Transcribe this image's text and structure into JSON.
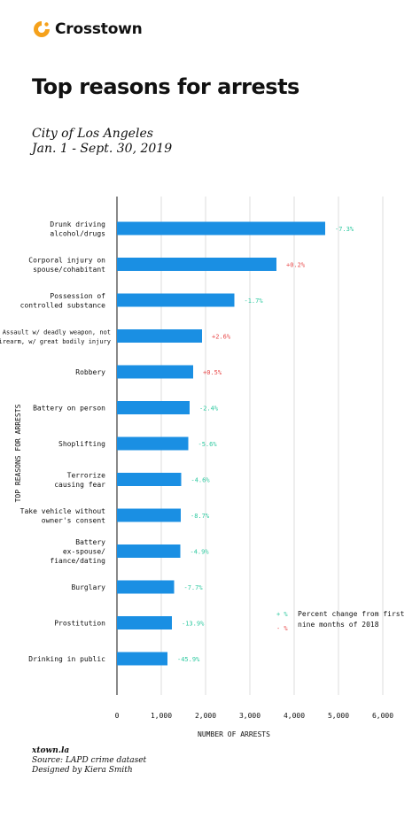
{
  "brand": {
    "name": "Crosstown",
    "color": "#f5a11b"
  },
  "header": {
    "title": "Top reasons for arrests",
    "subtitle_line1": "City of Los Angeles",
    "subtitle_line2": "Jan. 1 - Sept. 30, 2019"
  },
  "footer": {
    "site": "xtown.la",
    "source": "Source: LAPD crime dataset",
    "credit": "Designed by Kiera Smith"
  },
  "colors": {
    "bar": "#1a8fe3",
    "increase": "#e84a4a",
    "decrease": "#2ec9a0",
    "grid": "#dddddd",
    "axis": "#111111"
  },
  "chart_data": {
    "type": "bar",
    "orientation": "horizontal",
    "xlabel": "NUMBER OF ARRESTS",
    "ylabel": "TOP REASONS FOR ARRESTS",
    "xlim": [
      0,
      6000
    ],
    "xticks": [
      0,
      1000,
      2000,
      3000,
      4000,
      5000,
      6000
    ],
    "xtick_labels": [
      "0",
      "1,000",
      "2,000",
      "3,000",
      "4,000",
      "5,000",
      "6,000"
    ],
    "grid": true,
    "categories": [
      [
        "Drunk driving",
        "alcohol/drugs"
      ],
      [
        "Corporal injury on",
        "spouse/cohabitant"
      ],
      [
        "Possession of",
        "controlled substance"
      ],
      [
        "Assault w/ deadly weapon, not",
        "firearm, w/ great bodily injury"
      ],
      [
        "Robbery"
      ],
      [
        "Battery on person"
      ],
      [
        "Shoplifting"
      ],
      [
        "Terrorize",
        "causing fear"
      ],
      [
        "Take vehicle without",
        "owner's consent"
      ],
      [
        "Battery",
        "ex-spouse/",
        "fiance/dating"
      ],
      [
        "Burglary"
      ],
      [
        "Prostitution"
      ],
      [
        "Drinking in public"
      ]
    ],
    "values": [
      4700,
      3600,
      2650,
      1920,
      1720,
      1640,
      1610,
      1450,
      1440,
      1430,
      1290,
      1240,
      1140
    ],
    "pct_change_labels": [
      "-7.3%",
      "+0.2%",
      "-1.7%",
      "+2.6%",
      "+0.5%",
      "-2.4%",
      "-5.6%",
      "-4.6%",
      "-8.7%",
      "-4.9%",
      "-7.7%",
      "-13.9%",
      "-45.9%"
    ],
    "pct_change": [
      -7.3,
      0.2,
      -1.7,
      2.6,
      0.5,
      -2.4,
      -5.6,
      -4.6,
      -8.7,
      -4.9,
      -7.7,
      -13.9,
      -45.9
    ],
    "legend": {
      "placement": "bottom-right",
      "plus_symbol": "+ %",
      "minus_symbol": "- %",
      "text_line1": "Percent change from first",
      "text_line2": "nine months of 2018"
    }
  }
}
